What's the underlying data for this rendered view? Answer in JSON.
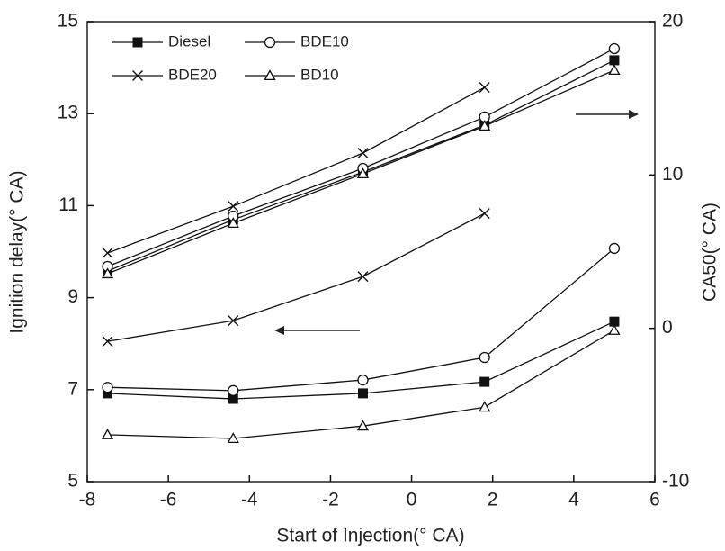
{
  "chart_data": {
    "type": "line",
    "x_label": "Start of Injection(° CA)",
    "y_label": "Ignition delay(° CA)",
    "y2_label": "CA50(° CA)",
    "x": [
      -7.5,
      -4.4,
      -1.2,
      1.8,
      5.0
    ],
    "xlim": [
      -8,
      6
    ],
    "xticks": [
      -8,
      -6,
      -4,
      -2,
      0,
      2,
      4,
      6
    ],
    "ylim": [
      5,
      15
    ],
    "yticks": [
      5,
      7,
      9,
      11,
      13,
      15
    ],
    "y2lim": [
      -10,
      20
    ],
    "y2ticks": [
      -10,
      0,
      10,
      20
    ],
    "color": "#111111",
    "series": [
      {
        "name": "Diesel",
        "marker": "square",
        "values": [
          6.92,
          6.8,
          6.92,
          7.17,
          8.48
        ],
        "y2_values": [
          3.73,
          7.08,
          10.19,
          13.25,
          17.48
        ]
      },
      {
        "name": "BDE10",
        "marker": "circle",
        "values": [
          7.05,
          6.98,
          7.21,
          7.7,
          10.07
        ],
        "y2_values": [
          4.03,
          7.32,
          10.43,
          13.78,
          18.24
        ]
      },
      {
        "name": "BDE20",
        "marker": "cross",
        "values": [
          8.05,
          8.5,
          9.46,
          10.83,
          null
        ],
        "y2_values": [
          4.91,
          7.96,
          11.43,
          15.71,
          null
        ]
      },
      {
        "name": "BD10",
        "marker": "triangle",
        "values": [
          6.02,
          5.94,
          6.21,
          6.62,
          8.29
        ],
        "y2_values": [
          3.56,
          6.85,
          10.08,
          13.19,
          16.83
        ]
      }
    ]
  }
}
